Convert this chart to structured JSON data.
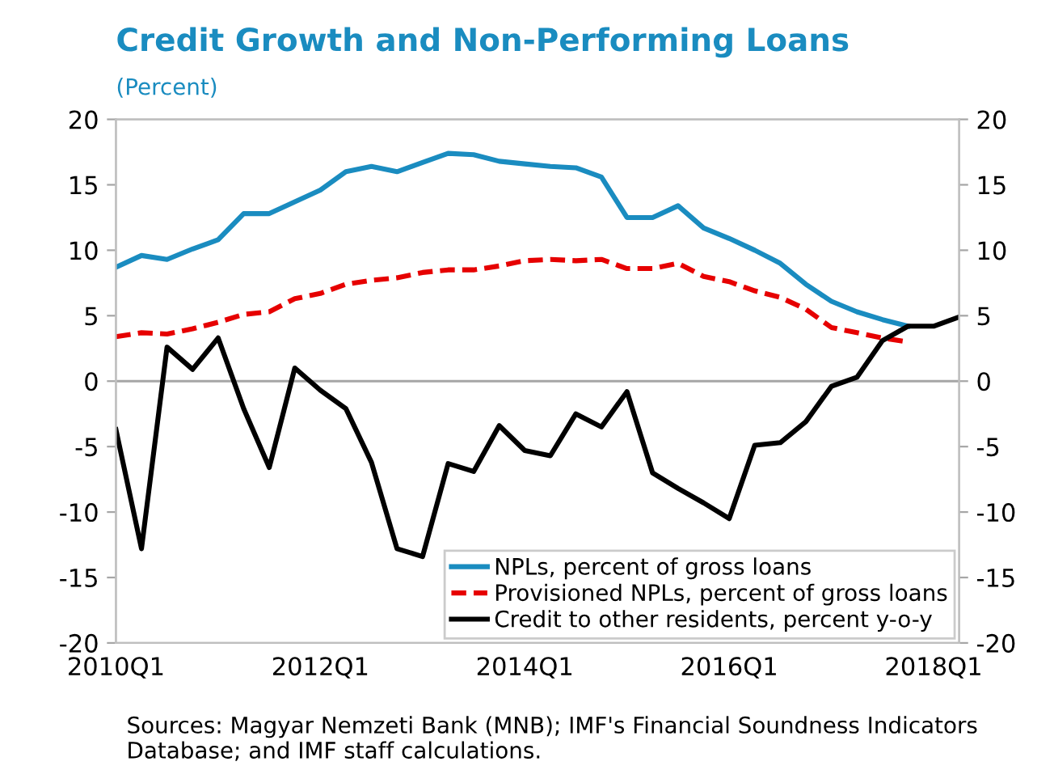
{
  "chart_data": {
    "type": "line",
    "title": "Credit Growth and Non-Performing Loans",
    "subtitle": "(Percent)",
    "categories": [
      "2010Q1",
      null,
      null,
      null,
      null,
      null,
      null,
      null,
      "2012Q1",
      null,
      null,
      null,
      null,
      null,
      null,
      null,
      "2014Q1",
      null,
      null,
      null,
      null,
      null,
      null,
      null,
      "2016Q1",
      null,
      null,
      null,
      null,
      null,
      null,
      null,
      "2018Q1",
      null
    ],
    "series": [
      {
        "name": "NPLs, percent of gross loans",
        "color": "#1a8cc0",
        "line_style": "solid",
        "values": [
          8.7,
          9.6,
          9.3,
          10.1,
          10.8,
          12.8,
          12.8,
          13.7,
          14.6,
          16.0,
          16.4,
          16.0,
          16.7,
          17.4,
          17.3,
          16.8,
          16.6,
          16.4,
          16.3,
          15.6,
          12.5,
          12.5,
          13.4,
          11.7,
          10.9,
          10.0,
          9.0,
          7.4,
          6.1,
          5.3,
          4.7,
          4.2,
          null,
          null
        ]
      },
      {
        "name": "Provisioned NPLs, percent of gross loans",
        "color": "#e60000",
        "line_style": "dashed",
        "values": [
          3.4,
          3.7,
          3.6,
          4.0,
          4.5,
          5.1,
          5.3,
          6.3,
          6.7,
          7.4,
          7.7,
          7.9,
          8.3,
          8.5,
          8.5,
          8.8,
          9.2,
          9.3,
          9.2,
          9.3,
          8.6,
          8.6,
          9.0,
          8.0,
          7.6,
          6.9,
          6.4,
          5.5,
          4.1,
          3.7,
          3.3,
          3.0,
          null,
          null
        ]
      },
      {
        "name": "Credit to other residents, percent y-o-y",
        "color": "#000000",
        "line_style": "solid",
        "values": [
          -3.7,
          -12.8,
          2.6,
          0.9,
          3.3,
          -2.1,
          -6.6,
          1.0,
          -0.7,
          -2.1,
          -6.2,
          -12.8,
          -13.4,
          -6.3,
          -6.9,
          -3.4,
          -5.3,
          -5.7,
          -2.5,
          -3.5,
          -0.8,
          -7.0,
          -8.2,
          -9.3,
          -10.5,
          -4.9,
          -4.7,
          -3.1,
          -0.4,
          0.3,
          3.1,
          4.2,
          4.2,
          4.9
        ]
      }
    ],
    "ylim": [
      -20,
      20
    ],
    "yticks": [
      -20,
      -15,
      -10,
      -5,
      0,
      5,
      10,
      15,
      20
    ],
    "y2lim": [
      -20,
      20
    ],
    "y2ticks": [
      -20,
      -15,
      -10,
      -5,
      0,
      5,
      10,
      15,
      20
    ],
    "ref_lines": [
      {
        "axis": "y",
        "value": 0,
        "color": "#a6a6a6"
      }
    ],
    "grid": false,
    "legend": "bottom right",
    "marker": "none",
    "annotations": [
      "Sources: Magyar Nemzeti Bank (MNB); IMF's Financial Soundness Indicators Database; and IMF staff calculations."
    ]
  }
}
